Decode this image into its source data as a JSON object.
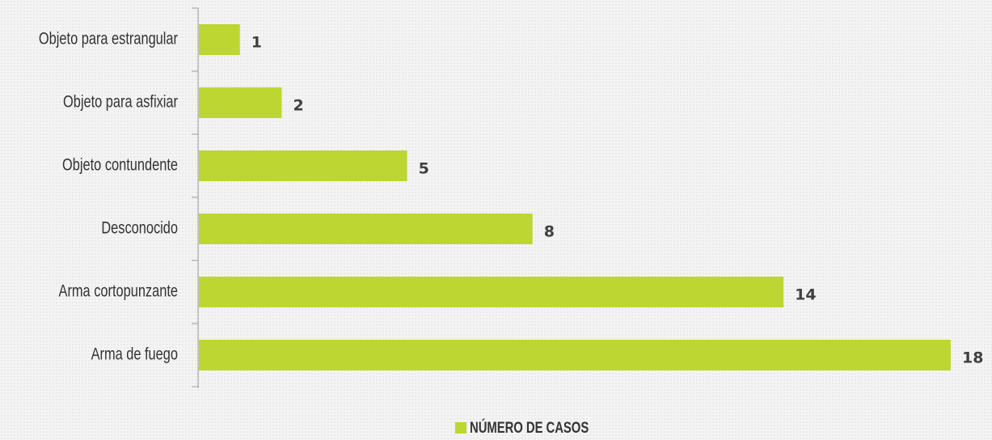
{
  "chart_data": {
    "type": "bar",
    "orientation": "horizontal",
    "categories": [
      "Objeto para estrangular",
      "Objeto para asfixiar",
      "Objeto contundente",
      "Desconocido",
      "Arma cortopunzante",
      "Arma de fuego"
    ],
    "series": [
      {
        "name": "NÚMERO DE CASOS",
        "color": "#bed631",
        "values": [
          1,
          2,
          5,
          8,
          14,
          18
        ]
      }
    ],
    "legend": "bottom"
  }
}
